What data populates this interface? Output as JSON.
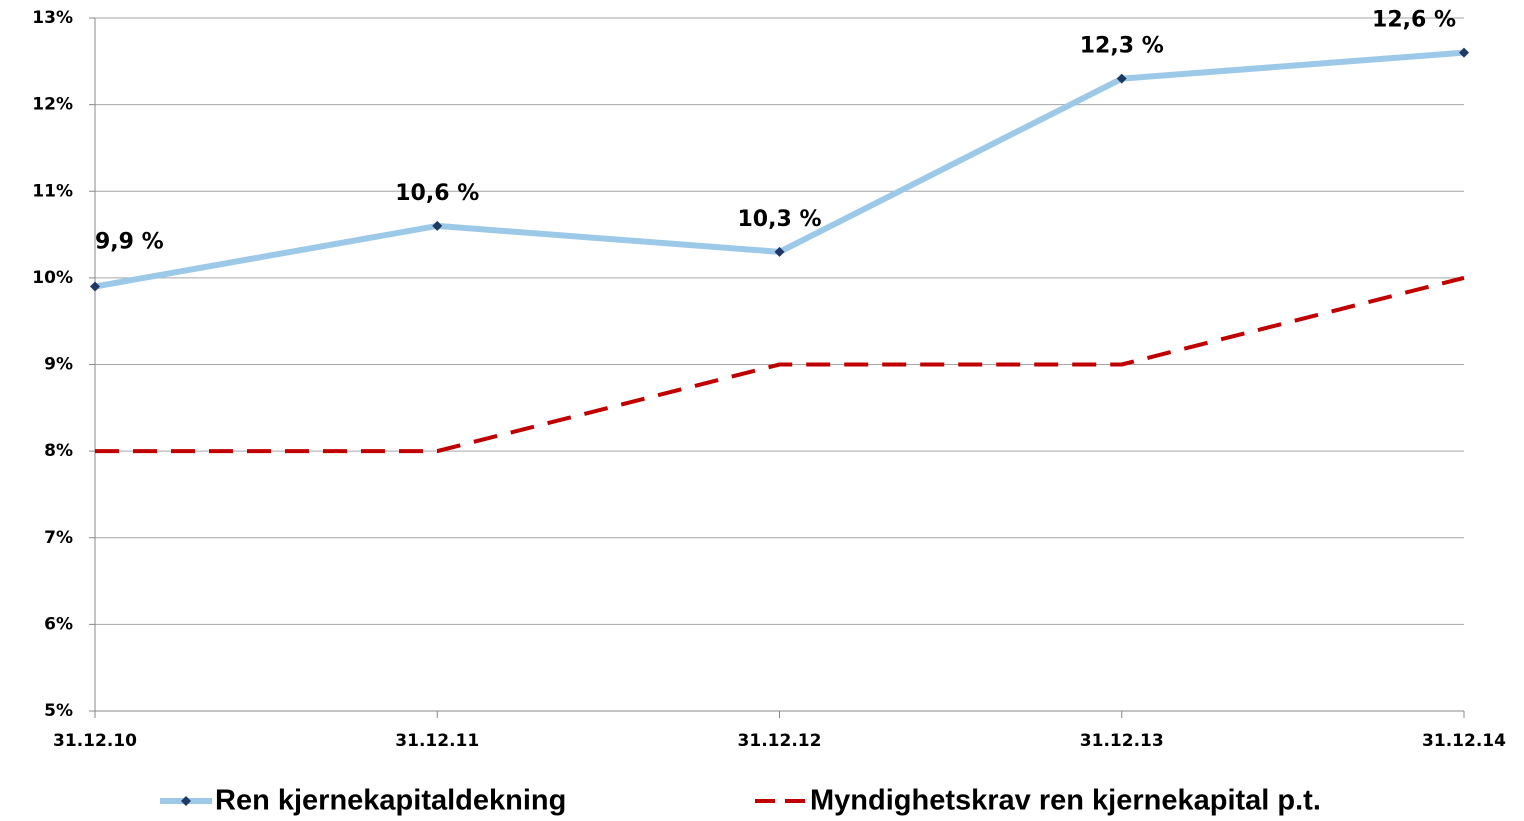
{
  "chart_data": {
    "type": "line",
    "categories": [
      "31.12.10",
      "31.12.11",
      "31.12.12",
      "31.12.13",
      "31.12.14"
    ],
    "series": [
      {
        "name": "Ren kjernekapitaldekning",
        "color": "#9dc9e8",
        "marker_color": "#1f3864",
        "values": [
          9.9,
          10.6,
          10.3,
          12.3,
          12.6
        ],
        "value_labels": [
          "9,9 %",
          "10,6 %",
          "10,3 %",
          "12,3 %",
          "12,6 %"
        ]
      },
      {
        "name": "Myndighetskrav ren kjernekapital p.t.",
        "color": "#c00000",
        "dashed": true,
        "values": [
          8,
          8,
          9,
          9,
          10
        ]
      }
    ],
    "ylim": [
      5,
      13
    ],
    "yticks": [
      {
        "value": 5,
        "label": "5%"
      },
      {
        "value": 6,
        "label": "6%"
      },
      {
        "value": 7,
        "label": "7%"
      },
      {
        "value": 8,
        "label": "8%"
      },
      {
        "value": 9,
        "label": "9%"
      },
      {
        "value": 10,
        "label": "10%"
      },
      {
        "value": 11,
        "label": "11%"
      },
      {
        "value": 12,
        "label": "12%"
      },
      {
        "value": 13,
        "label": "13%"
      }
    ],
    "grid": true,
    "legend": "bottom"
  }
}
